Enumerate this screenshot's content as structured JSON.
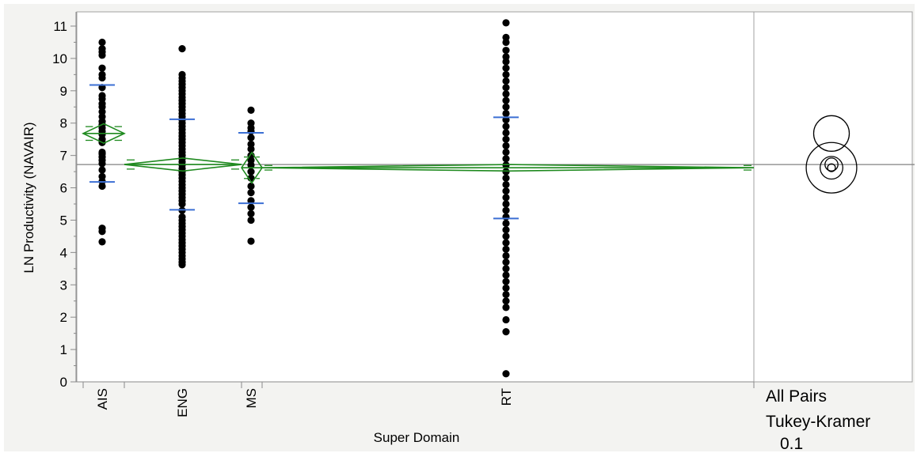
{
  "chart_data": {
    "type": "scatter",
    "xlabel": "Super Domain",
    "ylabel": "LN Productivity (NAVAIR)",
    "ylim": [
      0,
      11
    ],
    "yticks": [
      0,
      1,
      2,
      3,
      4,
      5,
      6,
      7,
      8,
      9,
      10,
      11
    ],
    "grand_mean": 6.72,
    "categories": [
      "AIS",
      "ENG",
      "MS",
      "RT"
    ],
    "groups": [
      {
        "name": "AIS",
        "mean": 7.68,
        "ci": [
          7.38,
          7.98
        ],
        "sd_bars": [
          6.18,
          9.18
        ],
        "points": [
          4.33,
          4.65,
          4.75,
          6.05,
          6.2,
          6.35,
          6.55,
          6.75,
          6.85,
          6.95,
          7.05,
          7.1,
          7.4,
          7.5,
          7.65,
          7.75,
          7.85,
          7.95,
          8.05,
          8.2,
          8.35,
          8.5,
          8.6,
          8.75,
          8.85,
          9.1,
          9.4,
          9.5,
          9.7,
          10.1,
          10.2,
          10.3,
          10.5
        ]
      },
      {
        "name": "ENG",
        "mean": 6.72,
        "ci": [
          6.52,
          6.92
        ],
        "sd_bars": [
          5.32,
          8.12
        ],
        "points": [
          3.62,
          3.7,
          3.8,
          3.9,
          4.0,
          4.1,
          4.2,
          4.3,
          4.4,
          4.5,
          4.6,
          4.7,
          4.8,
          4.9,
          5.0,
          5.1,
          5.3,
          5.5,
          5.6,
          5.7,
          5.8,
          5.9,
          6.0,
          6.1,
          6.2,
          6.3,
          6.4,
          6.5,
          6.6,
          6.7,
          6.8,
          6.9,
          7.0,
          7.1,
          7.2,
          7.3,
          7.4,
          7.5,
          7.6,
          7.7,
          7.8,
          7.9,
          8.0,
          8.1,
          8.2,
          8.3,
          8.4,
          8.5,
          8.6,
          8.7,
          8.8,
          8.9,
          9.0,
          9.1,
          9.2,
          9.3,
          9.4,
          9.5,
          10.3
        ]
      },
      {
        "name": "MS",
        "mean": 6.62,
        "ci": [
          6.15,
          7.09
        ],
        "sd_bars": [
          5.52,
          7.7
        ],
        "points": [
          4.35,
          5.0,
          5.2,
          5.4,
          5.6,
          5.85,
          6.05,
          6.3,
          6.5,
          6.7,
          6.85,
          7.0,
          7.2,
          7.35,
          7.55,
          7.75,
          7.85,
          8.0,
          8.4
        ]
      },
      {
        "name": "RT",
        "mean": 6.62,
        "ci": [
          6.52,
          6.72
        ],
        "sd_bars": [
          5.05,
          8.18
        ],
        "points": [
          0.25,
          1.55,
          1.92,
          2.3,
          2.5,
          2.7,
          2.9,
          3.1,
          3.3,
          3.5,
          3.7,
          3.9,
          4.1,
          4.3,
          4.5,
          4.7,
          4.9,
          5.1,
          5.3,
          5.5,
          5.7,
          5.9,
          6.1,
          6.3,
          6.5,
          6.7,
          6.9,
          7.1,
          7.3,
          7.5,
          7.7,
          7.9,
          8.1,
          8.3,
          8.5,
          8.7,
          8.9,
          9.1,
          9.3,
          9.5,
          9.7,
          9.9,
          10.05,
          10.25,
          10.5,
          10.65,
          11.1
        ]
      }
    ],
    "comparison_circles": [
      {
        "center": 7.68,
        "radius": 0.55
      },
      {
        "center": 6.72,
        "radius": 0.2
      },
      {
        "center": 6.62,
        "radius": 0.35
      },
      {
        "center": 6.62,
        "radius": 0.12
      },
      {
        "center": 6.62,
        "radius": 0.78
      }
    ],
    "comparison_label": [
      "All Pairs",
      "Tukey-Kramer",
      "0.1"
    ],
    "colors": {
      "points": "#000000",
      "diamond": "#1f8a1f",
      "sd_ticks": "#3b6fd4",
      "axis": "#8a8a8a"
    }
  }
}
